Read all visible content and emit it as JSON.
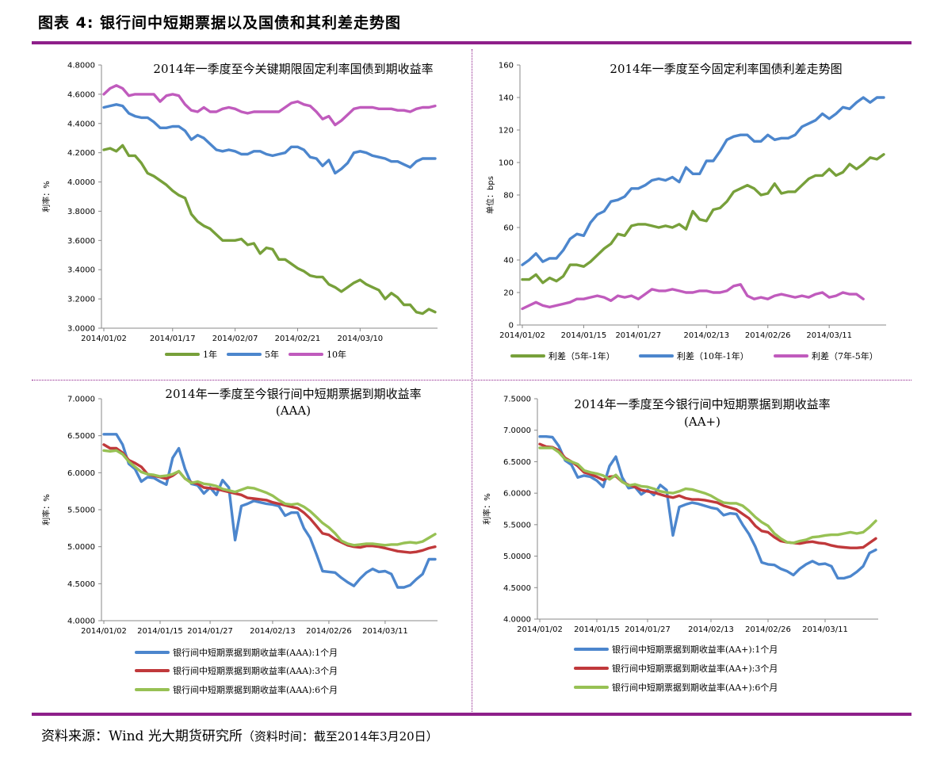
{
  "figure_title": "图表 4:  银行间中短期票据以及国债和其利差走势图",
  "source": {
    "label": "资料来源：Wind  光大期货研究所",
    "note": "（资料时间：截至2014年3月20日）"
  },
  "chart_data": [
    {
      "type": "line",
      "title": [
        "2014年一季度至今关键期限固定利率国债到期收益率"
      ],
      "ylabel": "利率：%",
      "ylim": [
        3.0,
        4.8
      ],
      "yticks": [
        3.0,
        3.2,
        3.4,
        3.6,
        3.8,
        4.0,
        4.2,
        4.4,
        4.6,
        4.8
      ],
      "ytick_labels": [
        "3.0000",
        "3.2000",
        "3.4000",
        "3.6000",
        "3.8000",
        "4.0000",
        "4.2000",
        "4.4000",
        "4.6000",
        "4.8000"
      ],
      "xtick_labels": [
        "2014/01/02",
        "2014/01/17",
        "2014/02/07",
        "2014/02/21",
        "2014/03/10"
      ],
      "xtick_index": [
        0,
        11,
        21,
        31,
        41
      ],
      "legend": "bottom",
      "series": [
        {
          "name": "1年",
          "color": "#77a03a",
          "values": [
            4.22,
            4.23,
            4.21,
            4.25,
            4.18,
            4.18,
            4.13,
            4.06,
            4.04,
            4.01,
            3.98,
            3.94,
            3.91,
            3.89,
            3.78,
            3.73,
            3.7,
            3.68,
            3.64,
            3.6,
            3.6,
            3.6,
            3.61,
            3.57,
            3.58,
            3.51,
            3.55,
            3.54,
            3.47,
            3.47,
            3.44,
            3.41,
            3.39,
            3.36,
            3.35,
            3.35,
            3.3,
            3.28,
            3.25,
            3.28,
            3.31,
            3.33,
            3.3,
            3.28,
            3.26,
            3.2,
            3.24,
            3.21,
            3.16,
            3.16,
            3.11,
            3.1,
            3.13,
            3.11
          ]
        },
        {
          "name": "5年",
          "color": "#4c86cd",
          "values": [
            4.51,
            4.52,
            4.53,
            4.52,
            4.47,
            4.45,
            4.44,
            4.44,
            4.41,
            4.37,
            4.37,
            4.38,
            4.38,
            4.35,
            4.29,
            4.32,
            4.3,
            4.26,
            4.22,
            4.21,
            4.22,
            4.21,
            4.19,
            4.19,
            4.21,
            4.21,
            4.19,
            4.18,
            4.19,
            4.2,
            4.24,
            4.24,
            4.22,
            4.17,
            4.16,
            4.11,
            4.15,
            4.06,
            4.09,
            4.13,
            4.2,
            4.21,
            4.2,
            4.18,
            4.17,
            4.16,
            4.14,
            4.14,
            4.12,
            4.1,
            4.14,
            4.16,
            4.16,
            4.16
          ]
        },
        {
          "name": "10年",
          "color": "#c05bbd",
          "values": [
            4.6,
            4.64,
            4.66,
            4.64,
            4.59,
            4.6,
            4.6,
            4.6,
            4.6,
            4.55,
            4.59,
            4.6,
            4.59,
            4.53,
            4.49,
            4.48,
            4.51,
            4.48,
            4.48,
            4.5,
            4.51,
            4.5,
            4.48,
            4.47,
            4.48,
            4.48,
            4.48,
            4.48,
            4.48,
            4.51,
            4.54,
            4.55,
            4.53,
            4.52,
            4.48,
            4.43,
            4.45,
            4.39,
            4.42,
            4.46,
            4.5,
            4.51,
            4.51,
            4.51,
            4.5,
            4.5,
            4.5,
            4.49,
            4.49,
            4.48,
            4.5,
            4.51,
            4.51,
            4.52
          ]
        }
      ]
    },
    {
      "type": "line",
      "title": [
        "2014年一季度至今固定利率国债利差走势图"
      ],
      "ylabel": "单位：bps",
      "ylim": [
        0,
        160
      ],
      "yticks": [
        0,
        20,
        40,
        60,
        80,
        100,
        120,
        140,
        160
      ],
      "ytick_labels": [
        "0",
        "20",
        "40",
        "60",
        "80",
        "100",
        "120",
        "140",
        "160"
      ],
      "xtick_labels": [
        "2014/01/02",
        "2014/01/15",
        "2014/01/27",
        "2014/02/13",
        "2014/02/26",
        "2014/03/11"
      ],
      "xtick_index": [
        0,
        9,
        17,
        27,
        36,
        45
      ],
      "legend": "bottom",
      "series": [
        {
          "name": "利差（5年-1年）",
          "color": "#77a03a",
          "values": [
            28,
            28,
            31,
            26,
            29,
            27,
            30,
            37,
            37,
            36,
            39,
            43,
            47,
            50,
            56,
            55,
            61,
            62,
            62,
            61,
            60,
            61,
            60,
            62,
            59,
            70,
            65,
            64,
            71,
            72,
            76,
            82,
            84,
            86,
            84,
            80,
            81,
            87,
            81,
            82,
            82,
            86,
            90,
            92,
            92,
            96,
            92,
            94,
            99,
            96,
            99,
            103,
            102,
            105
          ]
        },
        {
          "name": "利差（10年-1年）",
          "color": "#4c86cd",
          "values": [
            37,
            40,
            44,
            39,
            41,
            41,
            46,
            53,
            56,
            55,
            63,
            68,
            70,
            76,
            77,
            79,
            84,
            84,
            86,
            89,
            90,
            89,
            91,
            88,
            97,
            93,
            93,
            101,
            101,
            107,
            114,
            116,
            117,
            117,
            113,
            113,
            117,
            114,
            115,
            115,
            117,
            122,
            124,
            126,
            130,
            127,
            130,
            134,
            133,
            137,
            140,
            137,
            140,
            140
          ]
        },
        {
          "name": "利差（7年-5年）",
          "color": "#c05bbd",
          "values": [
            10,
            12,
            14,
            12,
            11,
            12,
            13,
            14,
            16,
            16,
            17,
            18,
            17,
            15,
            18,
            17,
            18,
            16,
            19,
            22,
            21,
            21,
            22,
            21,
            20,
            20,
            21,
            21,
            20,
            20,
            21,
            24,
            25,
            18,
            16,
            17,
            16,
            18,
            19,
            18,
            17,
            18,
            17,
            19,
            20,
            17,
            18,
            20,
            19,
            19,
            16
          ]
        }
      ]
    },
    {
      "type": "line",
      "title": [
        "2014年一季度至今银行间中短期票据到期收益率",
        "(AAA)"
      ],
      "ylabel": "利率：%",
      "ylim": [
        4.0,
        7.0
      ],
      "yticks": [
        4.0,
        4.5,
        5.0,
        5.5,
        6.0,
        6.5,
        7.0
      ],
      "ytick_labels": [
        "4.0000",
        "4.5000",
        "5.0000",
        "5.5000",
        "6.0000",
        "6.5000",
        "7.0000"
      ],
      "xtick_labels": [
        "2014/01/02",
        "2014/01/15",
        "2014/01/27",
        "2014/02/13",
        "2014/02/26",
        "2014/03/11"
      ],
      "xtick_index": [
        0,
        9,
        17,
        27,
        36,
        45
      ],
      "legend": "bottom",
      "series": [
        {
          "name": "银行间中短期票据到期收益率(AAA):1个月",
          "color": "#4c86cd",
          "values": [
            6.52,
            6.52,
            6.52,
            6.38,
            6.12,
            6.05,
            5.88,
            5.94,
            5.93,
            5.88,
            5.84,
            6.2,
            6.33,
            6.05,
            5.85,
            5.83,
            5.72,
            5.8,
            5.7,
            5.9,
            5.8,
            5.09,
            5.55,
            5.58,
            5.62,
            5.6,
            5.58,
            5.57,
            5.55,
            5.42,
            5.46,
            5.46,
            5.25,
            5.12,
            4.9,
            4.67,
            4.66,
            4.65,
            4.58,
            4.52,
            4.47,
            4.57,
            4.65,
            4.7,
            4.66,
            4.67,
            4.63,
            4.45,
            4.45,
            4.48,
            4.56,
            4.63,
            4.83,
            4.83
          ]
        },
        {
          "name": "银行间中短期票据到期收益率(AAA):3个月",
          "color": "#c0393b",
          "values": [
            6.38,
            6.33,
            6.33,
            6.27,
            6.17,
            6.13,
            6.08,
            5.98,
            5.96,
            5.94,
            5.92,
            5.96,
            6.02,
            5.92,
            5.87,
            5.85,
            5.8,
            5.79,
            5.78,
            5.76,
            5.74,
            5.72,
            5.7,
            5.66,
            5.65,
            5.64,
            5.63,
            5.6,
            5.58,
            5.56,
            5.54,
            5.52,
            5.46,
            5.38,
            5.28,
            5.18,
            5.16,
            5.1,
            5.06,
            5.02,
            5,
            4.99,
            5.01,
            5.01,
            5,
            4.98,
            4.96,
            4.94,
            4.93,
            4.92,
            4.93,
            4.95,
            4.98,
            5.0
          ]
        },
        {
          "name": "银行间中短期票据到期收益率(AAA):6个月",
          "color": "#97c154",
          "values": [
            6.3,
            6.29,
            6.3,
            6.25,
            6.15,
            6.08,
            6.01,
            5.98,
            5.97,
            5.95,
            5.96,
            5.98,
            6.02,
            5.92,
            5.86,
            5.88,
            5.85,
            5.84,
            5.82,
            5.78,
            5.76,
            5.74,
            5.77,
            5.8,
            5.79,
            5.76,
            5.73,
            5.69,
            5.63,
            5.58,
            5.57,
            5.58,
            5.54,
            5.48,
            5.4,
            5.32,
            5.26,
            5.18,
            5.08,
            5.04,
            5.02,
            5.03,
            5.04,
            5.04,
            5.03,
            5.02,
            5.03,
            5.03,
            5.05,
            5.06,
            5.05,
            5.07,
            5.12,
            5.17
          ]
        }
      ]
    },
    {
      "type": "line",
      "title": [
        "2014年一季度至今银行间中短期票据到期收益率",
        "(AA+)"
      ],
      "ylabel": "利率：%",
      "ylim": [
        4.0,
        7.5
      ],
      "yticks": [
        4.0,
        4.5,
        5.0,
        5.5,
        6.0,
        6.5,
        7.0,
        7.5
      ],
      "ytick_labels": [
        "4.0000",
        "4.5000",
        "5.0000",
        "5.5000",
        "6.0000",
        "6.5000",
        "7.0000",
        "7.5000"
      ],
      "xtick_labels": [
        "2014/01/02",
        "2014/01/15",
        "2014/01/27",
        "2014/02/13",
        "2014/02/26",
        "2014/03/11"
      ],
      "xtick_index": [
        0,
        9,
        17,
        27,
        36,
        45
      ],
      "legend": "bottom",
      "series": [
        {
          "name": "银行间中短期票据到期收益率(AA+):1个月",
          "color": "#4c86cd",
          "values": [
            6.9,
            6.9,
            6.89,
            6.75,
            6.52,
            6.45,
            6.25,
            6.28,
            6.26,
            6.2,
            6.1,
            6.43,
            6.58,
            6.25,
            6.08,
            6.1,
            5.98,
            6.05,
            5.97,
            6.13,
            6.05,
            5.33,
            5.78,
            5.82,
            5.85,
            5.83,
            5.8,
            5.77,
            5.75,
            5.65,
            5.68,
            5.67,
            5.5,
            5.35,
            5.15,
            4.9,
            4.87,
            4.86,
            4.8,
            4.76,
            4.7,
            4.8,
            4.87,
            4.92,
            4.87,
            4.88,
            4.84,
            4.65,
            4.65,
            4.68,
            4.75,
            4.84,
            5.05,
            5.1
          ]
        },
        {
          "name": "银行间中短期票据到期收益率(AA+):3个月",
          "color": "#c0393b",
          "values": [
            6.78,
            6.74,
            6.73,
            6.68,
            6.56,
            6.5,
            6.43,
            6.33,
            6.3,
            6.26,
            6.21,
            6.26,
            6.27,
            6.18,
            6.13,
            6.1,
            6.05,
            6.03,
            6.01,
            5.98,
            5.95,
            5.93,
            5.96,
            5.92,
            5.9,
            5.9,
            5.89,
            5.87,
            5.85,
            5.8,
            5.77,
            5.74,
            5.67,
            5.6,
            5.48,
            5.4,
            5.38,
            5.3,
            5.24,
            5.22,
            5.21,
            5.2,
            5.22,
            5.23,
            5.21,
            5.2,
            5.17,
            5.15,
            5.14,
            5.13,
            5.13,
            5.14,
            5.21,
            5.28
          ]
        },
        {
          "name": "银行间中短期票据到期收益率(AA+):6个月",
          "color": "#97c154",
          "values": [
            6.72,
            6.72,
            6.72,
            6.65,
            6.54,
            6.5,
            6.46,
            6.36,
            6.33,
            6.31,
            6.28,
            6.22,
            6.29,
            6.18,
            6.12,
            6.14,
            6.11,
            6.1,
            6.07,
            6.03,
            6.01,
            6,
            6.03,
            6.07,
            6.06,
            6.03,
            6,
            5.96,
            5.9,
            5.85,
            5.84,
            5.84,
            5.8,
            5.72,
            5.62,
            5.54,
            5.48,
            5.36,
            5.28,
            5.22,
            5.21,
            5.24,
            5.26,
            5.3,
            5.31,
            5.33,
            5.34,
            5.34,
            5.36,
            5.38,
            5.36,
            5.38,
            5.46,
            5.56
          ]
        }
      ]
    }
  ]
}
